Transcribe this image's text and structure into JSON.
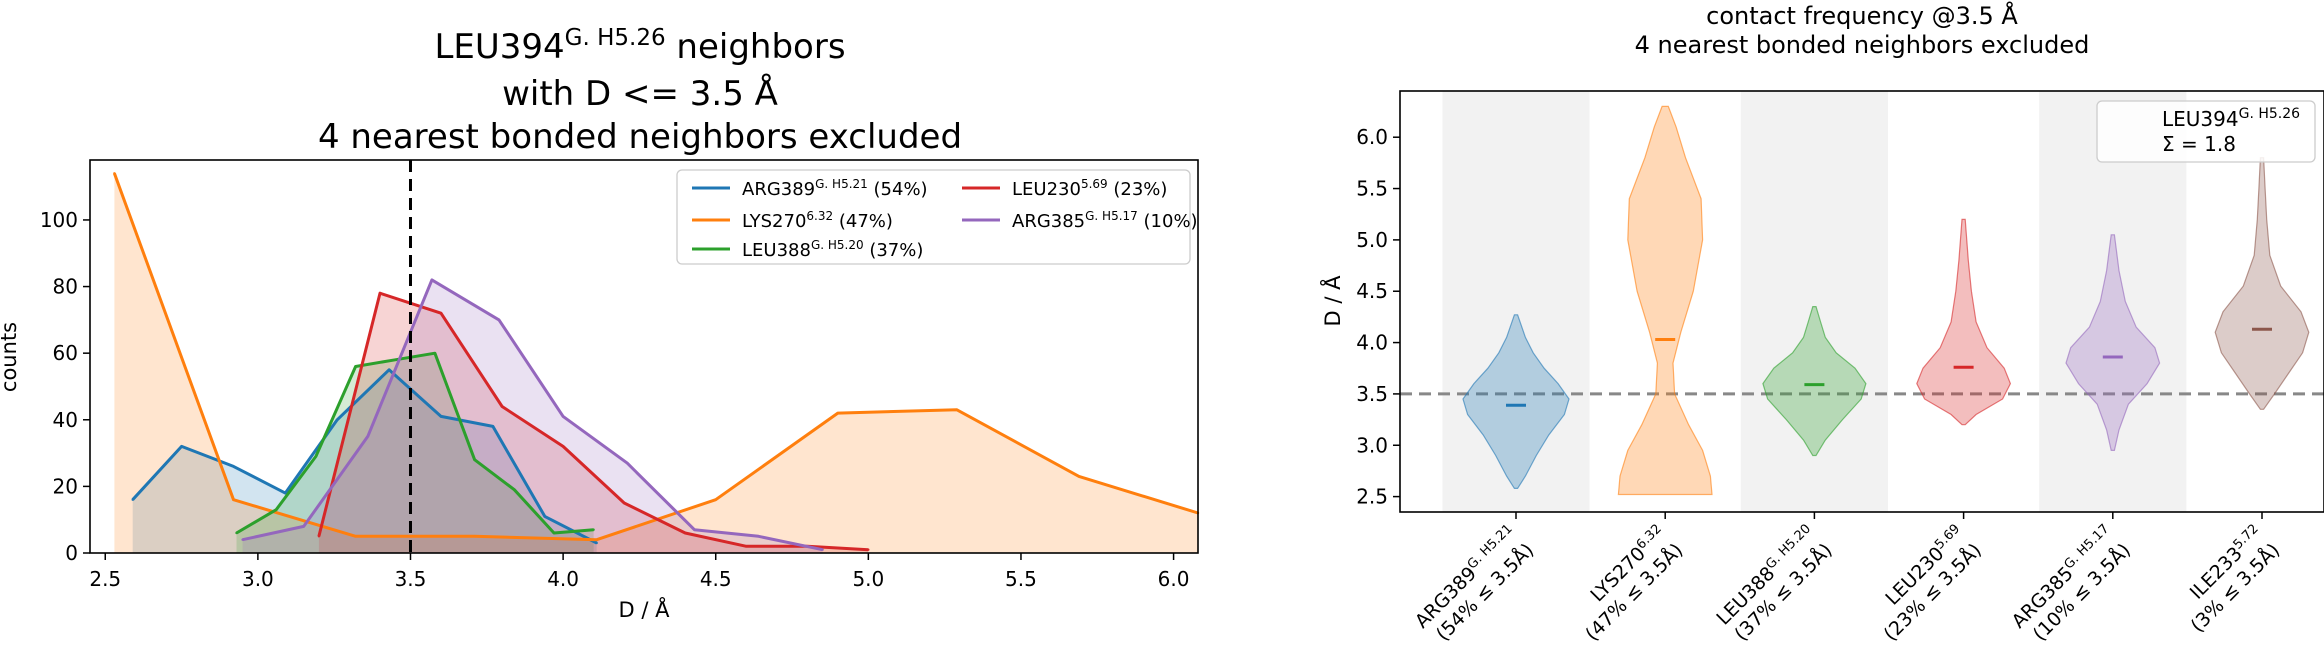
{
  "chart_data": [
    {
      "type": "area",
      "title_line1_name": "LEU394",
      "title_line1_sup": "G. H5.26",
      "title_line1_rest": " neighbors",
      "title_line2": "with D <= 3.5 Å",
      "title_line3": "4 nearest bonded neighbors excluded",
      "xlabel": "D / Å",
      "ylabel": "counts",
      "xlim": [
        2.45,
        6.08
      ],
      "ylim": [
        0,
        118
      ],
      "xticks": [
        "2.5",
        "3.0",
        "3.5",
        "4.0",
        "4.5",
        "5.0",
        "5.5",
        "6.0"
      ],
      "yticks": [
        "0",
        "20",
        "40",
        "60",
        "80",
        "100"
      ],
      "cutoff": 3.5,
      "legend_position": "upper right",
      "series": [
        {
          "name": "ARG389",
          "sup": "G. H5.21",
          "pct": " (54%)",
          "color": "#1f77b4",
          "x": [
            2.59,
            2.75,
            2.92,
            3.09,
            3.26,
            3.43,
            3.6,
            3.77,
            3.94,
            4.11
          ],
          "y": [
            16,
            32,
            26,
            18,
            40,
            55,
            41,
            38,
            11,
            3
          ]
        },
        {
          "name": "LYS270",
          "sup": "6.32",
          "pct": " (47%)",
          "color": "#ff7f0e",
          "x": [
            2.53,
            2.92,
            3.32,
            3.71,
            4.11,
            4.5,
            4.9,
            5.29,
            5.69,
            6.08
          ],
          "y": [
            114,
            16,
            5,
            5,
            4,
            16,
            42,
            43,
            23,
            12
          ]
        },
        {
          "name": "LEU388",
          "sup": "G. H5.20",
          "pct": " (37%)",
          "color": "#2ca02c",
          "x": [
            2.93,
            3.06,
            3.19,
            3.32,
            3.45,
            3.58,
            3.71,
            3.84,
            3.97,
            4.1
          ],
          "y": [
            6,
            13,
            29,
            56,
            58,
            60,
            28,
            19,
            6,
            7
          ]
        },
        {
          "name": "LEU230",
          "sup": "5.69",
          "pct": " (23%)",
          "color": "#d62728",
          "x": [
            3.2,
            3.4,
            3.6,
            3.8,
            4.0,
            4.2,
            4.4,
            4.6,
            4.8,
            5.0
          ],
          "y": [
            5,
            78,
            72,
            44,
            32,
            15,
            6,
            2,
            2,
            1
          ]
        },
        {
          "name": "ARG385",
          "sup": "G. H5.17",
          "pct": " (10%)",
          "color": "#9467bd",
          "x": [
            2.95,
            3.15,
            3.36,
            3.57,
            3.79,
            4.0,
            4.21,
            4.43,
            4.64,
            4.85
          ],
          "y": [
            4,
            8,
            35,
            82,
            70,
            41,
            27,
            7,
            5,
            1
          ]
        }
      ]
    },
    {
      "type": "violin",
      "title_line1": "contact frequency @3.5 Å",
      "title_line2": "4 nearest bonded neighbors excluded",
      "ylabel": "D / Å",
      "ylim": [
        2.35,
        6.45
      ],
      "yticks": [
        "2.5",
        "3.0",
        "3.5",
        "4.0",
        "4.5",
        "5.0",
        "5.5",
        "6.0"
      ],
      "cutoff": 3.5,
      "legend_name": "LEU394",
      "legend_sup": "G. H5.26",
      "legend_sum": "Σ = 1.8",
      "legend_position": "upper right",
      "violins": [
        {
          "name": "ARG389",
          "sup": "G. H5.21",
          "freq": "(54% ≤ 3.5Å)",
          "color": "#1f77b4",
          "median": 3.39,
          "profile": [
            [
              2.58,
              0.01
            ],
            [
              2.7,
              0.06
            ],
            [
              2.9,
              0.13
            ],
            [
              3.1,
              0.21
            ],
            [
              3.3,
              0.31
            ],
            [
              3.45,
              0.34
            ],
            [
              3.6,
              0.27
            ],
            [
              3.75,
              0.18
            ],
            [
              3.9,
              0.11
            ],
            [
              4.05,
              0.06
            ],
            [
              4.27,
              0.01
            ]
          ]
        },
        {
          "name": "LYS270",
          "sup": "6.32",
          "freq": "(47% ≤ 3.5Å)",
          "color": "#ff7f0e",
          "median": 4.03,
          "profile": [
            [
              2.52,
              0.3
            ],
            [
              2.7,
              0.29
            ],
            [
              2.95,
              0.24
            ],
            [
              3.2,
              0.15
            ],
            [
              3.5,
              0.06
            ],
            [
              3.8,
              0.05
            ],
            [
              4.1,
              0.1
            ],
            [
              4.5,
              0.18
            ],
            [
              5.0,
              0.24
            ],
            [
              5.4,
              0.23
            ],
            [
              5.8,
              0.13
            ],
            [
              6.1,
              0.07
            ],
            [
              6.3,
              0.02
            ]
          ]
        },
        {
          "name": "LEU388",
          "sup": "G. H5.20",
          "freq": "(37% ≤ 3.5Å)",
          "color": "#2ca02c",
          "median": 3.59,
          "profile": [
            [
              2.9,
              0.01
            ],
            [
              3.05,
              0.07
            ],
            [
              3.25,
              0.18
            ],
            [
              3.45,
              0.3
            ],
            [
              3.6,
              0.33
            ],
            [
              3.75,
              0.26
            ],
            [
              3.9,
              0.14
            ],
            [
              4.05,
              0.07
            ],
            [
              4.2,
              0.04
            ],
            [
              4.35,
              0.01
            ]
          ]
        },
        {
          "name": "LEU230",
          "sup": "5.69",
          "freq": "(23% ≤ 3.5Å)",
          "color": "#d62728",
          "median": 3.76,
          "profile": [
            [
              3.2,
              0.01
            ],
            [
              3.3,
              0.08
            ],
            [
              3.45,
              0.25
            ],
            [
              3.6,
              0.3
            ],
            [
              3.75,
              0.26
            ],
            [
              3.95,
              0.15
            ],
            [
              4.2,
              0.08
            ],
            [
              4.5,
              0.05
            ],
            [
              4.8,
              0.03
            ],
            [
              5.2,
              0.01
            ]
          ]
        },
        {
          "name": "ARG385",
          "sup": "G. H5.17",
          "freq": "(10% ≤ 3.5Å)",
          "color": "#9467bd",
          "median": 3.86,
          "profile": [
            [
              2.95,
              0.01
            ],
            [
              3.15,
              0.04
            ],
            [
              3.4,
              0.1
            ],
            [
              3.6,
              0.22
            ],
            [
              3.8,
              0.3
            ],
            [
              3.95,
              0.27
            ],
            [
              4.15,
              0.15
            ],
            [
              4.4,
              0.08
            ],
            [
              4.7,
              0.04
            ],
            [
              5.05,
              0.01
            ]
          ]
        },
        {
          "name": "ILE233",
          "sup": "5.72",
          "freq": "(3% ≤ 3.5Å)",
          "color": "#8c564b",
          "median": 4.13,
          "profile": [
            [
              3.35,
              0.01
            ],
            [
              3.5,
              0.08
            ],
            [
              3.7,
              0.17
            ],
            [
              3.9,
              0.26
            ],
            [
              4.1,
              0.3
            ],
            [
              4.3,
              0.25
            ],
            [
              4.55,
              0.12
            ],
            [
              4.85,
              0.05
            ],
            [
              5.2,
              0.03
            ],
            [
              5.5,
              0.02
            ],
            [
              5.8,
              0.01
            ]
          ]
        }
      ]
    }
  ]
}
